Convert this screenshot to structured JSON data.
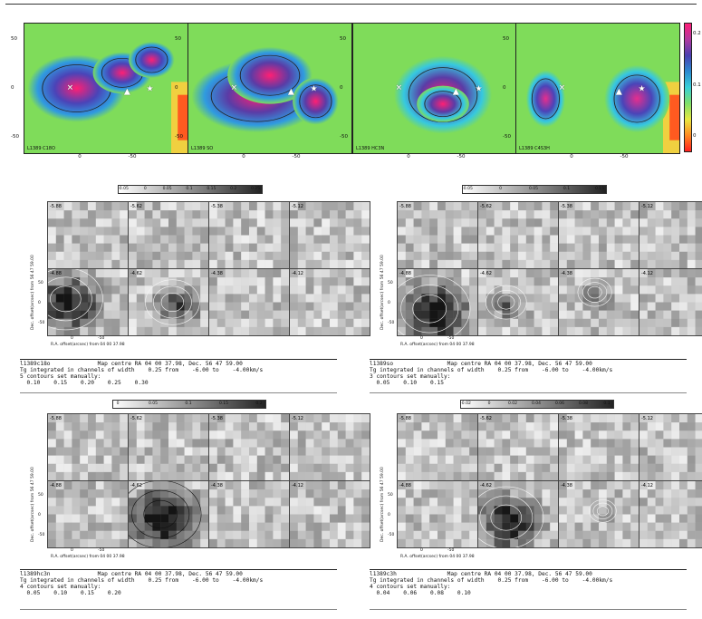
{
  "top_maps": [
    {
      "tag": "L1389 C18O",
      "cbar_ticks": [
        "0.4",
        "0.2",
        "0"
      ],
      "colors": {
        "core": "#ff1f74",
        "mid": "#4a44b8",
        "rim": "#2f9be0",
        "bg": "#7fdc5a"
      }
    },
    {
      "tag": "L1389 SO",
      "cbar_ticks": [
        "0.2",
        "0.1",
        "0",
        "-0.1"
      ],
      "colors": {
        "core": "#ff1f74",
        "mid": "#5a3ca6",
        "rim": "#2f9be0",
        "bg": "#7fdc5a"
      }
    },
    {
      "tag": "L1389 HC3N",
      "cbar_ticks": [
        "0.3",
        "0.2",
        "0.1"
      ],
      "colors": {
        "core": "#ff1f74",
        "mid": "#5a3ca6",
        "rim": "#36c8e0",
        "bg": "#7fdc5a"
      }
    },
    {
      "tag": "L1389 C4S3H",
      "cbar_ticks": [
        "0.2",
        "0.1",
        "0"
      ],
      "colors": {
        "core": "#e62e8e",
        "mid": "#4a44b8",
        "rim": "#36c8e0",
        "bg": "#7fdc5a"
      }
    }
  ],
  "top_axes": {
    "y_ticks": [
      "50",
      "0",
      "-50"
    ],
    "x_ticks": [
      "0",
      "-50"
    ]
  },
  "markers": {
    "cross": "✕",
    "triangle": "▲",
    "star": "★"
  },
  "grids": [
    {
      "id": "c18o",
      "cbar_ticks": [
        "-0.05",
        "0",
        "0.05",
        "0.1",
        "0.15",
        "0.2",
        "0.25"
      ],
      "velocities": [
        "-5.88",
        "-5.62",
        "-5.38",
        "-5.12",
        "-4.88",
        "-4.62",
        "-4.38",
        "-4.12"
      ],
      "ylabel": "Dec. offset(arcsec) from 56 47 59.00",
      "xlabel": "R.A. offset(arcsec) from 04 00 37.98",
      "axis_ticks": [
        "0",
        "-50"
      ],
      "info": [
        "l1389c18o              Map centre RA 04 00 37.98, Dec. 56 47 59.00",
        "Tg integrated in channels of width    0.25 from    -6.00 to    -4.00km/s",
        "5 contours set manually:",
        "  0.10    0.15    0.20    0.25    0.30"
      ]
    },
    {
      "id": "so",
      "cbar_ticks": [
        "-0.05",
        "0",
        "0.05",
        "0.1",
        "0.15"
      ],
      "velocities": [
        "-5.88",
        "-5.62",
        "-5.38",
        "-5.12",
        "-4.88",
        "-4.62",
        "-4.38",
        "-4.12"
      ],
      "ylabel": "Dec. offset(arcsec) from 56 47 59.00",
      "xlabel": "R.A. offset(arcsec) from 04 00 37.98",
      "axis_ticks": [
        "0",
        "-50"
      ],
      "info": [
        "l1389so                Map centre RA 04 00 37.98, Dec. 56 47 59.00",
        "Tg integrated in channels of width    0.25 from    -6.00 to    -4.00km/s",
        "3 contours set manually:",
        "  0.05    0.10    0.15"
      ]
    },
    {
      "id": "hc3n",
      "cbar_ticks": [
        "0",
        "0.05",
        "0.1",
        "0.15",
        "0.2"
      ],
      "velocities": [
        "-5.88",
        "-5.62",
        "-5.38",
        "-5.12",
        "-4.88",
        "-4.62",
        "-4.38",
        "-4.12"
      ],
      "ylabel": "Dec. offset(arcsec) from 56 47 59.00",
      "xlabel": "R.A. offset(arcsec) from 04 00 37.98",
      "axis_ticks": [
        "0",
        "-50"
      ],
      "info": [
        "l1389hc3n              Map centre RA 04 00 37.98, Dec. 56 47 59.00",
        "Tg integrated in channels of width    0.25 from    -6.00 to    -4.00km/s",
        "4 contours set manually:",
        "  0.05    0.10    0.15    0.20"
      ]
    },
    {
      "id": "c3h",
      "cbar_ticks": [
        "-0.02",
        "0",
        "0.02",
        "0.04",
        "0.06",
        "0.08",
        "0.1"
      ],
      "velocities": [
        "-5.88",
        "-5.62",
        "-5.38",
        "-5.12",
        "-4.88",
        "-4.62",
        "-4.38",
        "-4.12"
      ],
      "ylabel": "Dec. offset(arcsec) from 56 47 59.00",
      "xlabel": "R.A. offset(arcsec) from 04 00 37.98",
      "axis_ticks": [
        "0",
        "-50"
      ],
      "info": [
        "l1389c3h               Map centre RA 04 00 37.98, Dec. 56 47 59.00",
        "Tg integrated in channels of width    0.25 from    -6.00 to    -4.00km/s",
        "4 contours set manually:",
        "  0.04    0.06    0.08    0.10"
      ]
    }
  ]
}
